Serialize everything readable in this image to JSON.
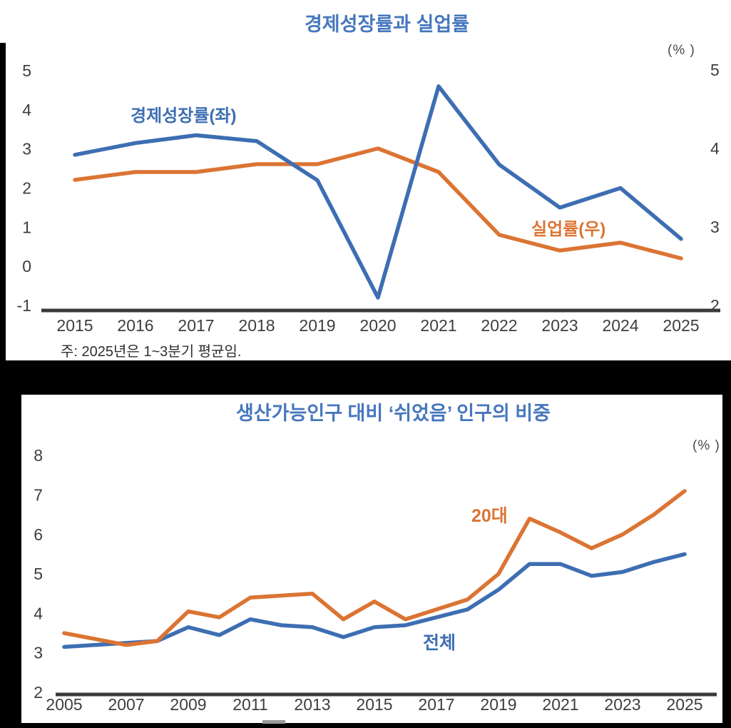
{
  "colors": {
    "line_blue": "#3D6EB2",
    "line_orange": "#DC7433",
    "title_blue": "#4677BD",
    "tick_text": "#3E3E3E",
    "axis_line": "#3A3A3A",
    "note_text": "#2F2F2F",
    "panel_bg": "#FFFFFF",
    "page_bg": "#000000"
  },
  "chart_data": [
    {
      "type": "line",
      "title": "경제성장률과 실업률",
      "unit_label": "(% )",
      "note": "주: 2025년은 1~3분기 평균임.",
      "x": [
        2015,
        2016,
        2017,
        2018,
        2019,
        2020,
        2021,
        2022,
        2023,
        2024,
        2025
      ],
      "x_tick_labels": [
        "2015",
        "2016",
        "2017",
        "2018",
        "2019",
        "2020",
        "2021",
        "2022",
        "2023",
        "2024",
        "2025"
      ],
      "left_axis": {
        "label_ticks": [
          5,
          4,
          3,
          2,
          1,
          0,
          -1
        ],
        "range": [
          -1,
          5
        ]
      },
      "right_axis": {
        "label_ticks": [
          5,
          4,
          3,
          2
        ],
        "range": [
          2,
          5
        ]
      },
      "grid": false,
      "legend_position": "labels-in-plot",
      "series": [
        {
          "name": "경제성장률(좌)",
          "axis": "left",
          "color": "blue",
          "values": [
            2.85,
            3.15,
            3.35,
            3.2,
            2.2,
            -0.8,
            4.6,
            2.6,
            1.5,
            2.0,
            0.7
          ]
        },
        {
          "name": "실업률(우)",
          "axis": "right",
          "color": "orange",
          "values": [
            3.6,
            3.7,
            3.7,
            3.8,
            3.8,
            4.0,
            3.7,
            2.9,
            2.7,
            2.8,
            2.6
          ]
        }
      ]
    },
    {
      "type": "line",
      "title": "생산가능인구 대비 ‘쉬었음’ 인구의 비중",
      "unit_label": "(% )",
      "x": [
        2005,
        2006,
        2007,
        2008,
        2009,
        2010,
        2011,
        2012,
        2013,
        2014,
        2015,
        2016,
        2017,
        2018,
        2019,
        2020,
        2021,
        2022,
        2023,
        2024,
        2025
      ],
      "x_tick_labels": [
        "2005",
        "2007",
        "2009",
        "2011",
        "2013",
        "2015",
        "2017",
        "2019",
        "2021",
        "2023",
        "2025"
      ],
      "left_axis": {
        "label_ticks": [
          8,
          7,
          6,
          5,
          4,
          3,
          2
        ],
        "range": [
          2,
          8
        ]
      },
      "grid": false,
      "legend_position": "labels-in-plot",
      "series": [
        {
          "name": "20대",
          "axis": "left",
          "color": "orange",
          "values": [
            3.5,
            3.35,
            3.2,
            3.3,
            4.05,
            3.9,
            4.4,
            4.45,
            4.5,
            3.85,
            4.3,
            3.85,
            4.1,
            4.35,
            5.0,
            6.4,
            6.05,
            5.65,
            6.0,
            6.5,
            7.1
          ]
        },
        {
          "name": "전체",
          "axis": "left",
          "color": "blue",
          "values": [
            3.15,
            3.2,
            3.25,
            3.3,
            3.65,
            3.45,
            3.85,
            3.7,
            3.65,
            3.4,
            3.65,
            3.7,
            3.9,
            4.1,
            4.6,
            5.25,
            5.25,
            4.95,
            5.05,
            5.3,
            5.5
          ]
        }
      ]
    }
  ]
}
